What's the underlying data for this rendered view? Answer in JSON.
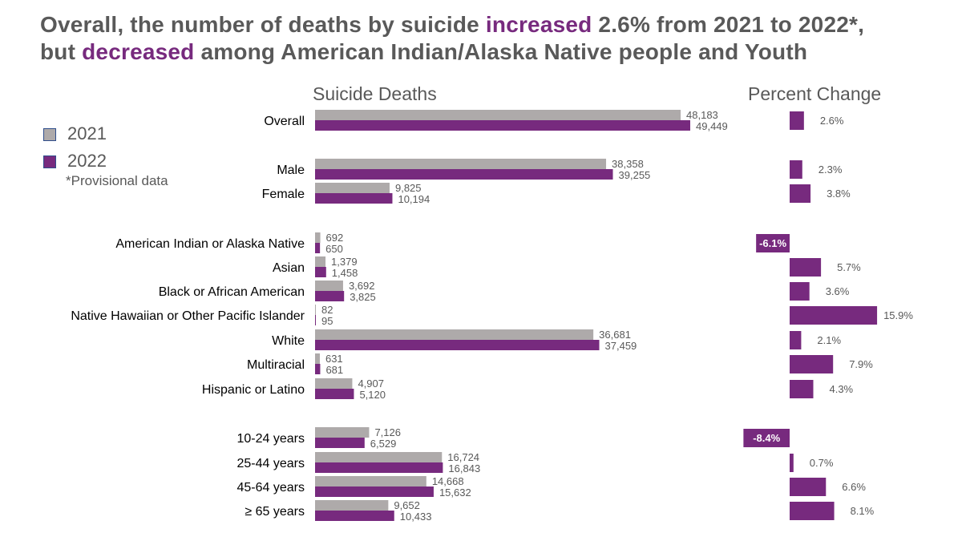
{
  "title": {
    "line1_pre": "Overall, the number of deaths by suicide ",
    "line1_hl": "increased",
    "line1_post": " 2.6% from 2021 to 2022*,",
    "line2_pre": "but ",
    "line2_hl": "decreased",
    "line2_post": " among American Indian/Alaska Native people and Youth"
  },
  "legend": {
    "y2021": "2021",
    "y2022": "2022",
    "note": "*Provisional data"
  },
  "colors": {
    "y2021": "#aeaaaa",
    "y2022": "#772a7e",
    "text": "#595959"
  },
  "chart_data": [
    {
      "type": "bar",
      "orientation": "horizontal",
      "title": "Suicide Deaths",
      "categories": [
        "Overall",
        "Male",
        "Female",
        "American Indian or Alaska Native",
        "Asian",
        "Black or African American",
        "Native Hawaiian or Other Pacific Islander",
        "White",
        "Multiracial",
        "Hispanic or Latino",
        "10-24 years",
        "25-44 years",
        "45-64 years",
        "≥ 65 years"
      ],
      "series": [
        {
          "name": "2021",
          "values": [
            48183,
            38358,
            9825,
            692,
            1379,
            3692,
            82,
            36681,
            631,
            4907,
            7126,
            16724,
            14668,
            9652
          ]
        },
        {
          "name": "2022",
          "values": [
            49449,
            39255,
            10194,
            650,
            1458,
            3825,
            95,
            37459,
            681,
            5120,
            6529,
            16843,
            15632,
            10433
          ]
        }
      ],
      "legend": "left"
    },
    {
      "type": "bar",
      "orientation": "horizontal",
      "title": "Percent Change",
      "categories": [
        "Overall",
        "Male",
        "Female",
        "American Indian or Alaska Native",
        "Asian",
        "Black or African American",
        "Native Hawaiian or Other Pacific Islander",
        "White",
        "Multiracial",
        "Hispanic or Latino",
        "10-24 years",
        "25-44 years",
        "45-64 years",
        "≥ 65 years"
      ],
      "values": [
        2.6,
        2.3,
        3.8,
        -6.1,
        5.7,
        3.6,
        15.9,
        2.1,
        7.9,
        4.3,
        -8.4,
        0.7,
        6.6,
        8.1
      ],
      "unit": "%"
    }
  ]
}
